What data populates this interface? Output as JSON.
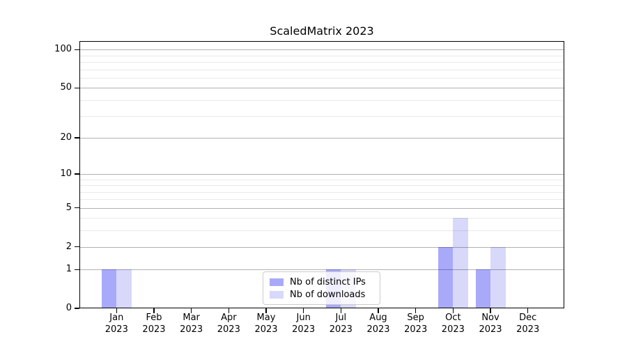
{
  "figure": {
    "background": "#ffffff",
    "text_color": "#000000"
  },
  "chart_data": {
    "type": "bar",
    "title": "ScaledMatrix 2023",
    "categories": [
      "Jan",
      "Feb",
      "Mar",
      "Apr",
      "May",
      "Jun",
      "Jul",
      "Aug",
      "Sep",
      "Oct",
      "Nov",
      "Dec"
    ],
    "category_year": "2023",
    "series": [
      {
        "name": "Nb of distinct IPs",
        "values": [
          1,
          0,
          0,
          0,
          0,
          0,
          1,
          0,
          0,
          2,
          1,
          0
        ],
        "color": "#0000EE56",
        "color_flat": "#A9A9F9"
      },
      {
        "name": "Nb of downloads",
        "values": [
          1,
          0,
          0,
          0,
          0,
          0,
          1,
          0,
          0,
          4,
          2,
          0
        ],
        "color": "#0000DD27",
        "color_flat": "#D9D9F9"
      }
    ],
    "xlabel": "",
    "ylabel": "",
    "yscale": "quasi-log (log(1+y), zero shown)",
    "ylim": [
      0,
      117
    ],
    "yticks": [
      0,
      1,
      2,
      5,
      10,
      20,
      50,
      100
    ],
    "yticks_minor": [
      3,
      4,
      6,
      7,
      8,
      9,
      30,
      40,
      60,
      70,
      80,
      90
    ],
    "grid": {
      "major_color": "#b0b0b0",
      "minor_color": "#e9e9e9",
      "axis": "y"
    },
    "legend": {
      "position": "lower center",
      "entries": [
        "Nb of distinct IPs",
        "Nb of downloads"
      ]
    }
  }
}
